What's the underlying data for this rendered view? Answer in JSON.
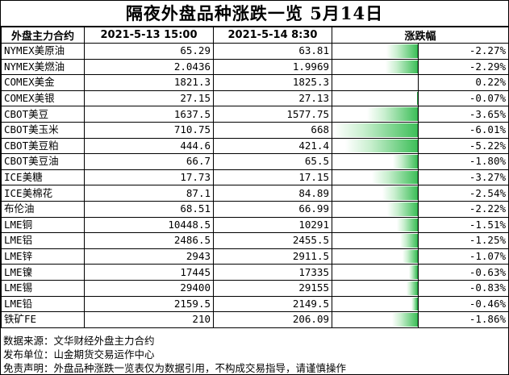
{
  "title": "隔夜外盘品种涨跌一览 5月14日",
  "headers": {
    "name": "外盘主力合约",
    "prev": "2021-5-13 15:00",
    "curr": "2021-5-14 8:30",
    "change": "涨跌幅"
  },
  "colors": {
    "negative_bar": "#3fbf5a",
    "positive_bar": "#e03030"
  },
  "chart_data": {
    "type": "table",
    "categories": [
      "NYMEX美原油",
      "NYMEX美燃油",
      "COMEX美金",
      "COMEX美银",
      "CBOT美豆",
      "CBOT美玉米",
      "CBOT美豆粕",
      "CBOT美豆油",
      "ICE美糖",
      "ICE美棉花",
      "布伦油",
      "LME铜",
      "LME铝",
      "LME锌",
      "LME镍",
      "LME锡",
      "LME铅",
      "铁矿FE"
    ],
    "series": [
      {
        "name": "2021-5-13 15:00",
        "values": [
          "65.29",
          "2.0436",
          "1821.3",
          "27.15",
          "1637.5",
          "710.75",
          "444.6",
          "66.7",
          "17.73",
          "87.1",
          "68.51",
          "10448.5",
          "2486.5",
          "2943",
          "17445",
          "29400",
          "2159.5",
          "210"
        ]
      },
      {
        "name": "2021-5-14 8:30",
        "values": [
          "63.81",
          "1.9969",
          "1825.3",
          "27.13",
          "1577.75",
          "668",
          "421.4",
          "65.5",
          "17.15",
          "84.89",
          "66.99",
          "10291",
          "2455.5",
          "2911.5",
          "17335",
          "29155",
          "2149.5",
          "206.09"
        ]
      },
      {
        "name": "涨跌幅",
        "values": [
          -2.27,
          -2.29,
          0.22,
          -0.07,
          -3.65,
          -6.01,
          -5.22,
          -1.8,
          -3.27,
          -2.54,
          -2.22,
          -1.51,
          -1.25,
          -1.07,
          -0.63,
          -0.83,
          -0.46,
          -1.86
        ]
      }
    ],
    "change_labels": [
      "-2.27%",
      "-2.29%",
      "0.22%",
      "-0.07%",
      "-3.65%",
      "-6.01%",
      "-5.22%",
      "-1.80%",
      "-3.27%",
      "-2.54%",
      "-2.22%",
      "-1.51%",
      "-1.25%",
      "-1.07%",
      "-0.63%",
      "-0.83%",
      "-0.46%",
      "-1.86%"
    ],
    "bar_range": [
      -6.01,
      0.22
    ]
  },
  "notes": [
    "数据来源：文华财经外盘主力合约",
    "发布单位：山金期货交易运作中心",
    "免责声明：外盘品种涨跌一览表仅为数据引用，不构成交易指导，请谨慎操作"
  ]
}
